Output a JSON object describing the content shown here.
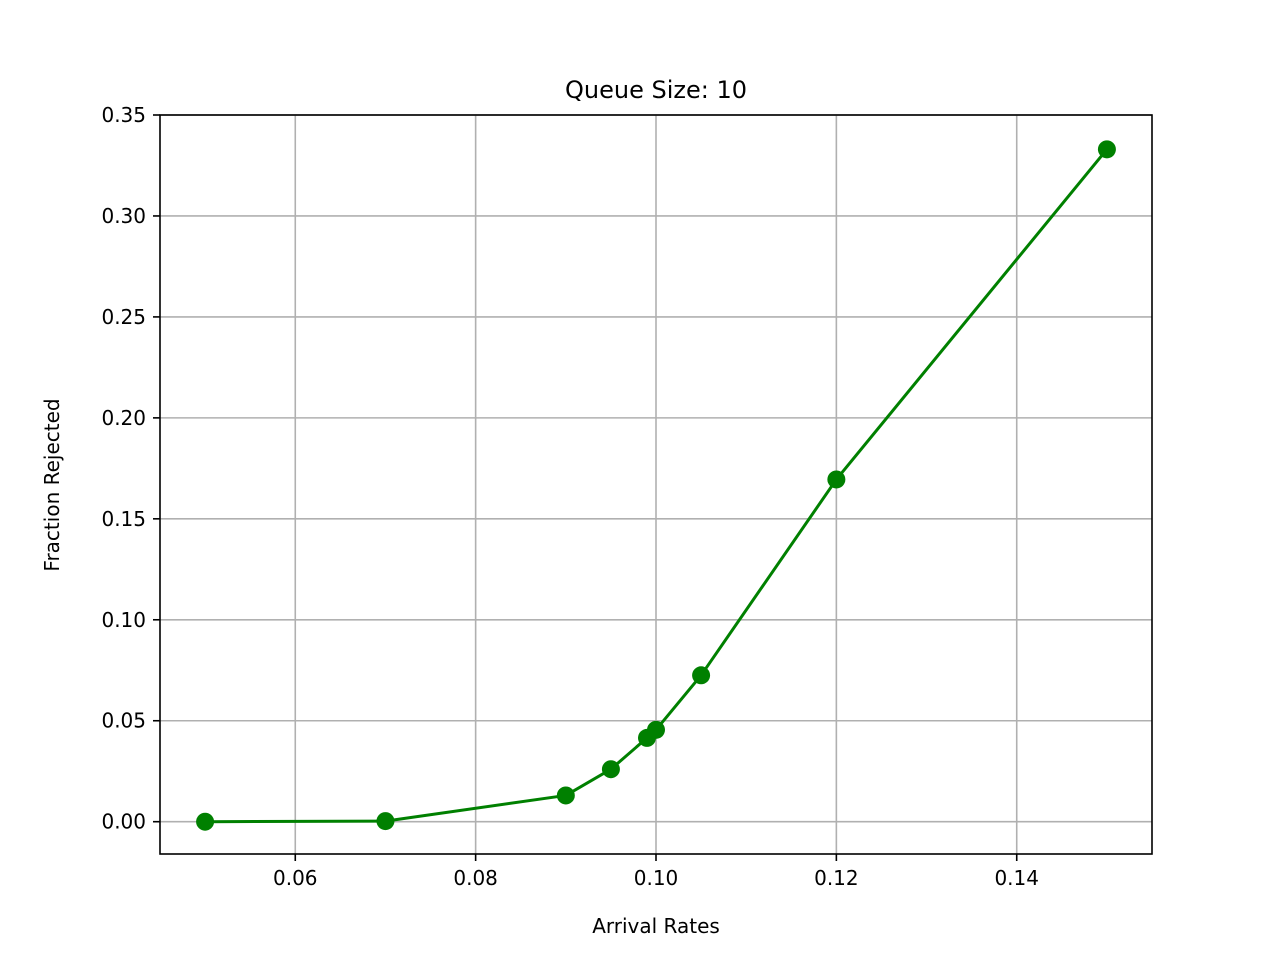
{
  "chart_data": {
    "type": "line",
    "title": "Queue Size: 10",
    "xlabel": "Arrival Rates",
    "ylabel": "Fraction Rejected",
    "xlim": [
      0.045,
      0.155
    ],
    "ylim": [
      -0.016,
      0.35
    ],
    "xticks": [
      "0.06",
      "0.08",
      "0.10",
      "0.12",
      "0.14"
    ],
    "yticks": [
      "0.00",
      "0.05",
      "0.10",
      "0.15",
      "0.20",
      "0.25",
      "0.30",
      "0.35"
    ],
    "grid": true,
    "series": [
      {
        "x": [
          0.05,
          0.07,
          0.09,
          0.095,
          0.099,
          0.1,
          0.105,
          0.12,
          0.15
        ],
        "y": [
          0.0,
          0.0003,
          0.013,
          0.026,
          0.0415,
          0.0455,
          0.0725,
          0.1695,
          0.333
        ],
        "color": "#008000",
        "marker": "circle"
      }
    ],
    "colors": {
      "grid": "#b0b0b0",
      "axes": "#000000",
      "line": "#008000"
    }
  }
}
